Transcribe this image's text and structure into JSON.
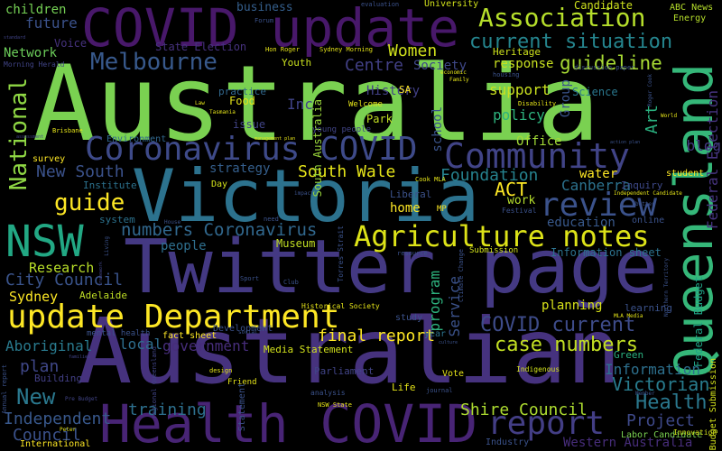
{
  "words": [
    {
      "text": "Australia",
      "color": "#7ad151"
    },
    {
      "text": "Australian",
      "color": "#46327e"
    },
    {
      "text": "Twitter page",
      "color": "#443983"
    },
    {
      "text": "Victoria",
      "color": "#2c728e"
    },
    {
      "text": "COVID update",
      "color": "#48186a"
    },
    {
      "text": "Health COVID",
      "color": "#482475"
    },
    {
      "text": "Queensland",
      "color": "#35b779"
    },
    {
      "text": "update Department",
      "color": "#fde725"
    },
    {
      "text": "Agriculture notes",
      "color": "#dde318"
    },
    {
      "text": "NSW",
      "color": "#22a884"
    },
    {
      "text": "Coronavirus COVID",
      "color": "#3e4a89"
    },
    {
      "text": "Community",
      "color": "#414487"
    },
    {
      "text": "report",
      "color": "#433e85"
    },
    {
      "text": "review",
      "color": "#3b528b"
    },
    {
      "text": "Melbourne",
      "color": "#38598c"
    },
    {
      "text": "Association",
      "color": "#b5de2b"
    },
    {
      "text": "current situation",
      "color": "#25858e"
    },
    {
      "text": "National",
      "color": "#8fd744"
    },
    {
      "text": "case numbers",
      "color": "#c2df23"
    },
    {
      "text": "COVID current",
      "color": "#3e4c8a"
    },
    {
      "text": "numbers Coronavirus",
      "color": "#31688e"
    },
    {
      "text": "guide",
      "color": "#fde725"
    },
    {
      "text": "guideline",
      "color": "#a8db34"
    },
    {
      "text": "City Council",
      "color": "#3a548c"
    },
    {
      "text": "Shire Council",
      "color": "#addc30"
    },
    {
      "text": "Women",
      "color": "#d0e11c"
    },
    {
      "text": "Centre",
      "color": "#424086"
    },
    {
      "text": "Victorian",
      "color": "#287c8e"
    },
    {
      "text": "Health",
      "color": "#2a788e"
    },
    {
      "text": "New",
      "color": "#2a788e"
    },
    {
      "text": "Foundation",
      "color": "#26828e"
    },
    {
      "text": "Project",
      "color": "#3e4989"
    },
    {
      "text": "Information",
      "color": "#2d708e"
    },
    {
      "text": "training",
      "color": "#2d708e"
    },
    {
      "text": "Aboriginal",
      "color": "#297a8e"
    },
    {
      "text": "Independent",
      "color": "#38588c"
    },
    {
      "text": "Council",
      "color": "#3b528b"
    },
    {
      "text": "plan",
      "color": "#3f4788"
    },
    {
      "text": "final report",
      "color": "#fde725"
    },
    {
      "text": "Research",
      "color": "#b8de29"
    },
    {
      "text": "Sydney",
      "color": "#fde725"
    },
    {
      "text": "children",
      "color": "#75d054"
    },
    {
      "text": "future",
      "color": "#3b528b"
    },
    {
      "text": "Network",
      "color": "#6ccd5a"
    },
    {
      "text": "ACT",
      "color": "#fde725"
    },
    {
      "text": "South Wale",
      "color": "#e5e419"
    },
    {
      "text": "New South",
      "color": "#3b528b"
    },
    {
      "text": "Canberra",
      "color": "#2c728e"
    },
    {
      "text": "support",
      "color": "#cae11f"
    },
    {
      "text": "policy",
      "color": "#2db27d"
    },
    {
      "text": "response",
      "color": "#c8e020"
    },
    {
      "text": "Inc",
      "color": "#404387"
    },
    {
      "text": "program",
      "color": "#2db27d"
    },
    {
      "text": "Service",
      "color": "#3b528b"
    },
    {
      "text": "Art",
      "color": "#2ab07f"
    },
    {
      "text": "local",
      "color": "#2e6e8e"
    },
    {
      "text": "government",
      "color": "#472d7b"
    },
    {
      "text": "planning",
      "color": "#d8e219"
    },
    {
      "text": "blog",
      "color": "#443a83"
    },
    {
      "text": "water",
      "color": "#fde725"
    },
    {
      "text": "Office",
      "color": "#a2da37"
    },
    {
      "text": "home",
      "color": "#fde725"
    },
    {
      "text": "education",
      "color": "#38598c"
    },
    {
      "text": "people",
      "color": "#2e6f8e"
    },
    {
      "text": "strategy",
      "color": "#355f8d"
    },
    {
      "text": "Society",
      "color": "#3f4889"
    },
    {
      "text": "History",
      "color": "#424086"
    },
    {
      "text": "Federal Budget",
      "color": "#20a386"
    },
    {
      "text": "Federal Election",
      "color": "#46337f"
    },
    {
      "text": "business",
      "color": "#355f8d"
    },
    {
      "text": "Candidate",
      "color": "#cde11d"
    },
    {
      "text": "State Election",
      "color": "#46327e"
    },
    {
      "text": "Voice",
      "color": "#46327e"
    },
    {
      "text": "Group",
      "color": "#3a548c"
    },
    {
      "text": "Youth",
      "color": "#cae11f"
    },
    {
      "text": "Heritage",
      "color": "#cde11d"
    },
    {
      "text": "Science",
      "color": "#2a788e"
    },
    {
      "text": "Park",
      "color": "#c2df23"
    },
    {
      "text": "Museum",
      "color": "#c2df23"
    },
    {
      "text": "Food",
      "color": "#e5e419"
    },
    {
      "text": "issue",
      "color": "#414487"
    },
    {
      "text": "practice",
      "color": "#31688e"
    },
    {
      "text": "South Australia",
      "color": "#9bd93c"
    },
    {
      "text": "school",
      "color": "#3a548c"
    },
    {
      "text": "Adelaide",
      "color": "#c0df25"
    },
    {
      "text": "Budget Submission",
      "color": "#d2e21b"
    },
    {
      "text": "Information sheet",
      "color": "#2c728e"
    },
    {
      "text": "Institute",
      "color": "#2c728e"
    },
    {
      "text": "survey",
      "color": "#fde725"
    },
    {
      "text": "Day",
      "color": "#d2e21b"
    },
    {
      "text": "system",
      "color": "#2c728e"
    },
    {
      "text": "Environment",
      "color": "#31688e"
    },
    {
      "text": "Inquiry",
      "color": "#3e4989"
    },
    {
      "text": "student",
      "color": "#fde725"
    },
    {
      "text": "Liberal",
      "color": "#3b528b"
    },
    {
      "text": "work",
      "color": "#b5de2b"
    },
    {
      "text": "Vote",
      "color": "#e5e419"
    },
    {
      "text": "SA",
      "color": "#fde725"
    },
    {
      "text": "Building",
      "color": "#423f85"
    },
    {
      "text": "fact sheet",
      "color": "#fde725"
    },
    {
      "text": "Development",
      "color": "#3b528b"
    },
    {
      "text": "Media Statement",
      "color": "#d2e21b"
    },
    {
      "text": "Parliament",
      "color": "#414487"
    },
    {
      "text": "Life",
      "color": "#e5e419"
    },
    {
      "text": "Green",
      "color": "#2ab07f"
    },
    {
      "text": "learning",
      "color": "#3b528b"
    },
    {
      "text": "International",
      "color": "#fde725"
    },
    {
      "text": "Industry",
      "color": "#3b528b"
    },
    {
      "text": "Western Australia",
      "color": "#472d7b"
    },
    {
      "text": "Labor Candidate",
      "color": "#7ad151"
    },
    {
      "text": "ABC News",
      "color": "#b5de2b"
    },
    {
      "text": "Energy",
      "color": "#b5de2b"
    },
    {
      "text": "mental health",
      "color": "#3b528b"
    },
    {
      "text": "University",
      "color": "#d2e21b"
    },
    {
      "text": "Innovation",
      "color": "#d2e21b"
    },
    {
      "text": "online",
      "color": "#3b528b"
    },
    {
      "text": "Friend",
      "color": "#e5e419"
    },
    {
      "text": "study",
      "color": "#3b528b"
    },
    {
      "text": "year",
      "color": "#2c728e"
    },
    {
      "text": "Statement",
      "color": "#3b528b"
    },
    {
      "text": "young people",
      "color": "#414487"
    },
    {
      "text": "MP",
      "color": "#fde725"
    },
    {
      "text": "Welcome",
      "color": "#e5e419"
    },
    {
      "text": "Sydney Morning",
      "color": "#e5e419"
    },
    {
      "text": "Morning Herald",
      "color": "#414487"
    },
    {
      "text": "Hon Roger",
      "color": "#e5e419"
    },
    {
      "text": "evaluation",
      "color": "#3b528b"
    },
    {
      "text": "Forum",
      "color": "#3b528b"
    },
    {
      "text": "Annual report",
      "color": "#3b528b"
    },
    {
      "text": "regional Queensland",
      "color": "#414487"
    },
    {
      "text": "Submission",
      "color": "#d2e21b"
    },
    {
      "text": "resource",
      "color": "#3b528b"
    },
    {
      "text": "Torres Strait",
      "color": "#3b528b"
    },
    {
      "text": "Historical Society",
      "color": "#e5e419"
    },
    {
      "text": "analysis",
      "color": "#3b528b"
    },
    {
      "text": "NSW State",
      "color": "#e5e419"
    },
    {
      "text": "design",
      "color": "#e5e419"
    },
    {
      "text": "Indigenous",
      "color": "#d2e21b"
    },
    {
      "text": "journal",
      "color": "#3b528b"
    },
    {
      "text": "MLA Media",
      "color": "#e5e419"
    },
    {
      "text": "Independent Candidate",
      "color": "#e5e419"
    },
    {
      "text": "Cook MLA",
      "color": "#e5e419"
    },
    {
      "text": "Festival",
      "color": "#3b528b"
    },
    {
      "text": "Climate Change",
      "color": "#3b528b"
    },
    {
      "text": "Member",
      "color": "#3b528b"
    },
    {
      "text": "Peter",
      "color": "#e5e419"
    },
    {
      "text": "Pre Budget",
      "color": "#414487"
    },
    {
      "text": "Disability",
      "color": "#e5e419"
    },
    {
      "text": "discussion paper",
      "color": "#3b528b"
    },
    {
      "text": "Family",
      "color": "#e5e419"
    },
    {
      "text": "economic",
      "color": "#e5e419"
    },
    {
      "text": "Law",
      "color": "#e5e419"
    },
    {
      "text": "Tasmania",
      "color": "#e5e419"
    },
    {
      "text": "Brisbane",
      "color": "#e5e419"
    },
    {
      "text": "Sport",
      "color": "#3b528b"
    },
    {
      "text": "Club",
      "color": "#3b528b"
    },
    {
      "text": "need",
      "color": "#3b528b"
    },
    {
      "text": "impact",
      "color": "#3b528b"
    },
    {
      "text": "social",
      "color": "#3b528b"
    },
    {
      "text": "House",
      "color": "#3b528b"
    },
    {
      "text": "management plan",
      "color": "#e5e419"
    },
    {
      "text": "action plan",
      "color": "#3b528b"
    },
    {
      "text": "framework",
      "color": "#414487"
    },
    {
      "text": "culture",
      "color": "#3b528b"
    },
    {
      "text": "standard",
      "color": "#414487"
    },
    {
      "text": "assessment",
      "color": "#414487"
    },
    {
      "text": "families",
      "color": "#414487"
    },
    {
      "text": "housing",
      "color": "#3b528b"
    },
    {
      "text": "Living",
      "color": "#3b528b"
    },
    {
      "text": "Roger Cook",
      "color": "#3b528b"
    },
    {
      "text": "World",
      "color": "#e5e419"
    },
    {
      "text": "better",
      "color": "#3b528b"
    },
    {
      "text": "Northern Territory",
      "color": "#3b528b"
    }
  ]
}
